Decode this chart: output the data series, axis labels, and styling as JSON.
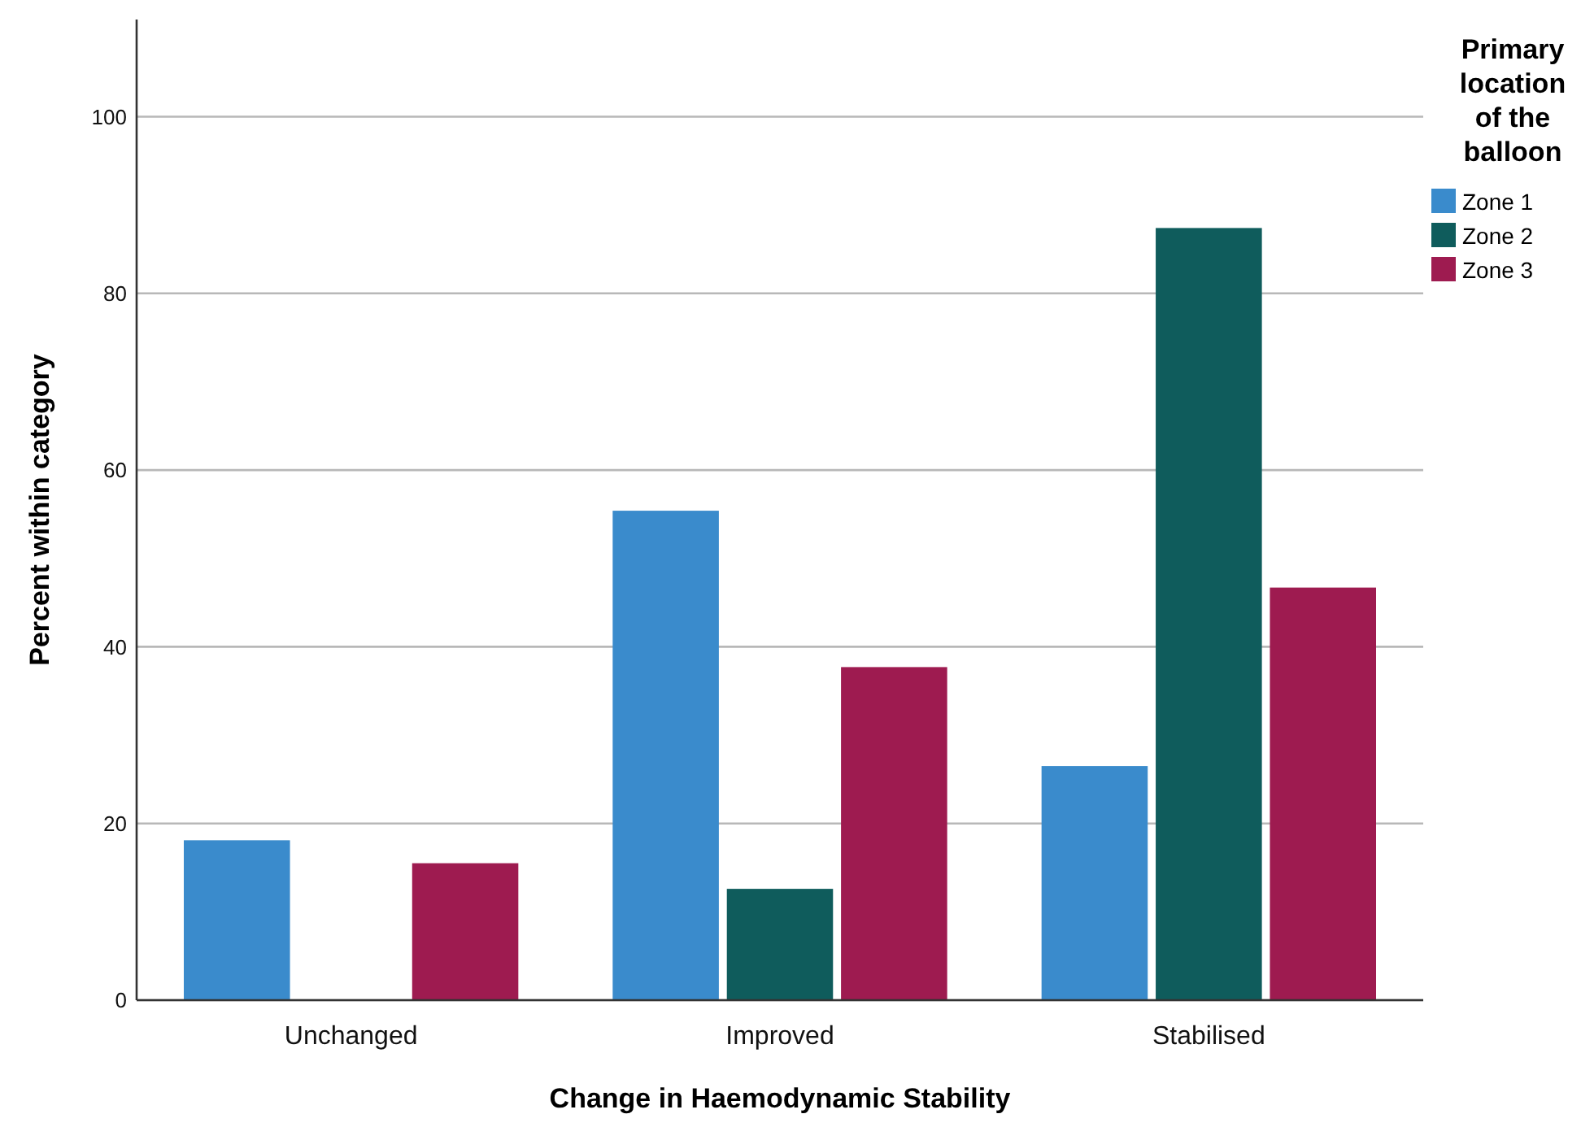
{
  "chart_data": {
    "type": "bar",
    "xlabel": "Change in Haemodynamic Stability",
    "ylabel": "Percent within category",
    "legend_title": "Primary location of the balloon",
    "categories": [
      "Unchanged",
      "Improved",
      "Stabilised"
    ],
    "series": [
      {
        "name": "Zone 1",
        "color": "#3a8bcc",
        "values": [
          18.1,
          55.4,
          26.5
        ]
      },
      {
        "name": "Zone 2",
        "color": "#0f5c5c",
        "values": [
          null,
          12.6,
          87.4
        ]
      },
      {
        "name": "Zone 3",
        "color": "#9e1b50",
        "values": [
          15.5,
          37.7,
          46.7
        ]
      }
    ],
    "ylim": [
      0,
      111
    ],
    "yticks": [
      0,
      20,
      40,
      60,
      80,
      100
    ],
    "grid": "y",
    "legend": "top right"
  }
}
